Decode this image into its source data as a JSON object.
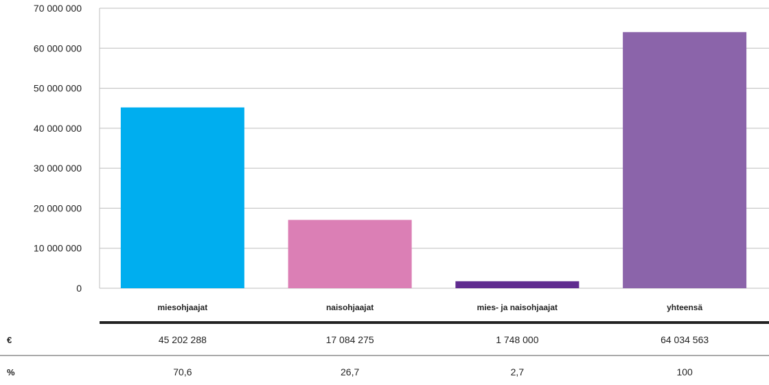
{
  "chart_data": {
    "type": "bar",
    "categories": [
      "miesohjaajat",
      "naisohjaajat",
      "mies- ja naisohjaajat",
      "yhteensä"
    ],
    "values": [
      45202288,
      17084275,
      1748000,
      64034563
    ],
    "colors": [
      "#00aeef",
      "#db7fb5",
      "#5f2b8f",
      "#8b64aa"
    ],
    "ylim": [
      0,
      70000000
    ],
    "yticks": [
      0,
      10000000,
      20000000,
      30000000,
      40000000,
      50000000,
      60000000,
      70000000
    ],
    "ytick_labels": [
      "0",
      "10 000 000",
      "20 000 000",
      "30 000 000",
      "40 000 000",
      "50 000 000",
      "60 000 000",
      "70 000 000"
    ],
    "grid": true,
    "table": {
      "rows": [
        {
          "head": "€",
          "cells": [
            "45 202 288",
            "17 084 275",
            "1 748 000",
            "64 034 563"
          ]
        },
        {
          "head": "%",
          "cells": [
            "70,6",
            "26,7",
            "2,7",
            "100"
          ]
        }
      ]
    }
  }
}
